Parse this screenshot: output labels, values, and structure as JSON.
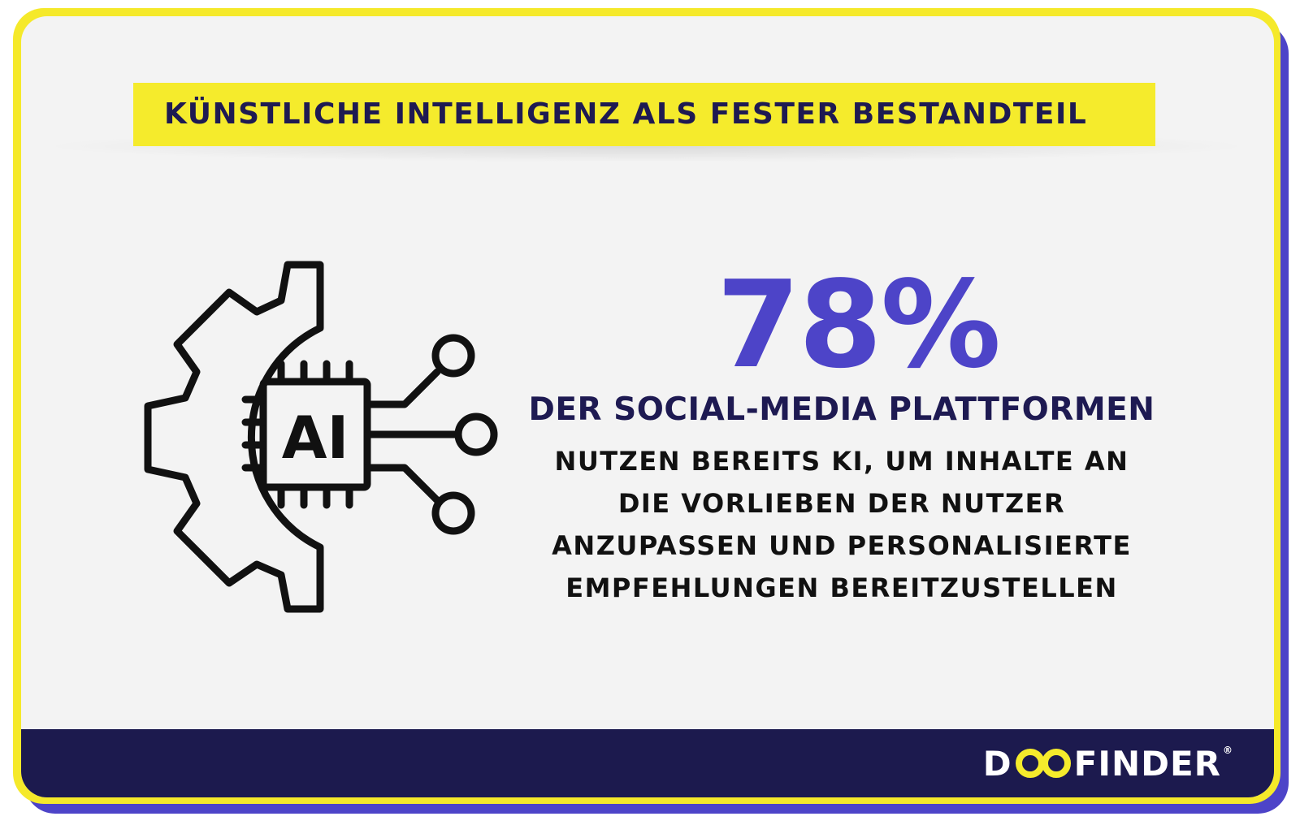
{
  "header": {
    "title": "KÜNSTLICHE INTELLIGENZ ALS FESTER BESTANDTEIL"
  },
  "stat": {
    "value": "78%",
    "subhead": "DER SOCIAL-MEDIA PLATTFORMEN",
    "lines": [
      "NUTZEN BEREITS KI, UM INHALTE AN",
      "DIE VORLIEBEN DER NUTZER",
      "ANZUPASSEN UND PERSONALISIERTE",
      "EMPFEHLUNGEN BEREITZUSTELLEN"
    ]
  },
  "icon": {
    "name": "ai-gear-chip-icon",
    "chip_label": "AI"
  },
  "footer": {
    "brand_first": "D",
    "brand_rest": "FINDER",
    "brand_mark": "®",
    "brand_full": "DOOFINDER"
  },
  "colors": {
    "accent_yellow": "#f5eb2c",
    "accent_purple": "#4d44c8",
    "navy": "#1c1a4e",
    "background": "#f3f3f3"
  }
}
